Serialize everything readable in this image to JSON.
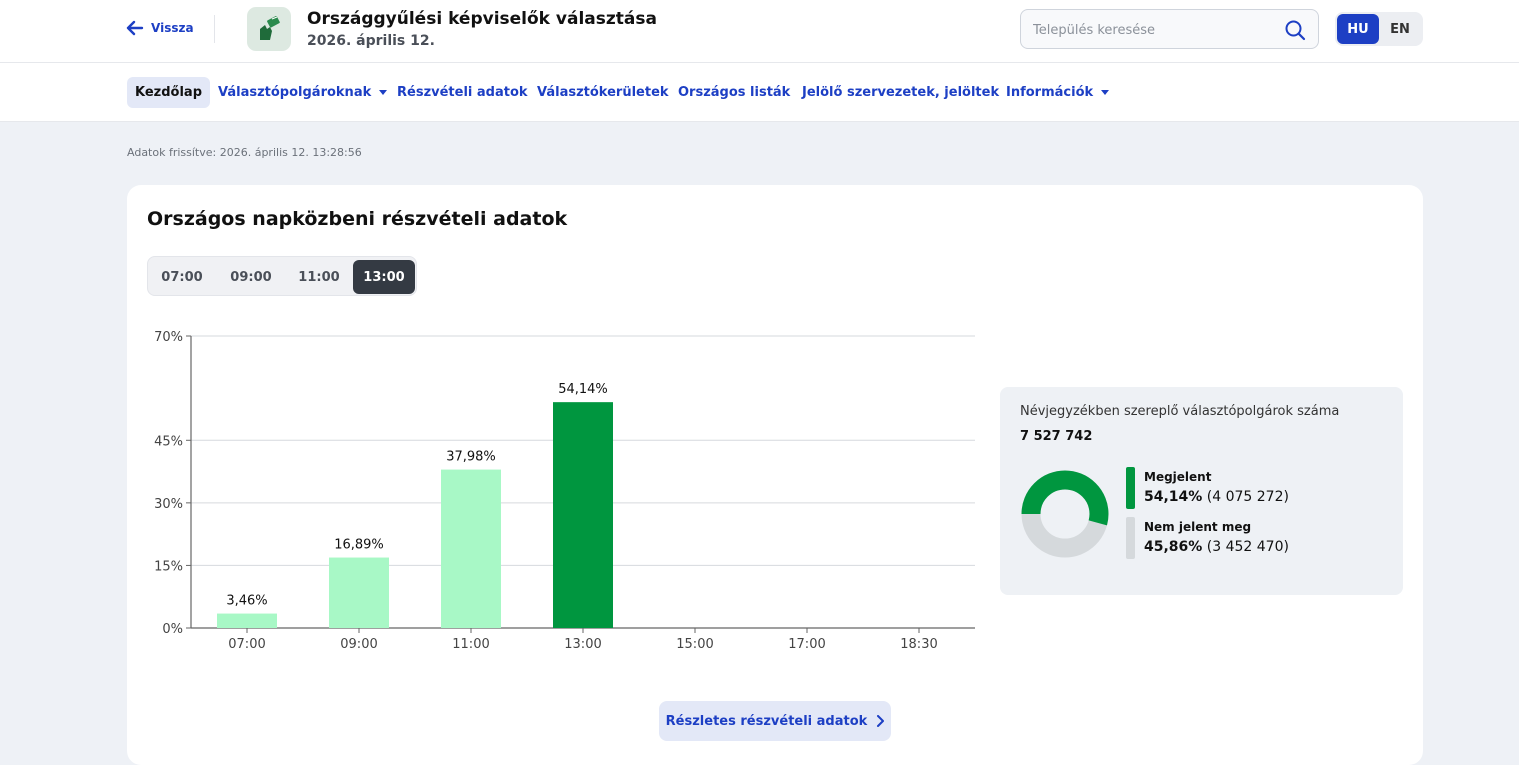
{
  "header": {
    "back_label": "Vissza",
    "title": "Országgyűlési képviselők választása",
    "subtitle": "2026. április 12.",
    "search_placeholder": "Település keresése",
    "languages": [
      "HU",
      "EN"
    ],
    "active_language": "HU"
  },
  "nav": {
    "items": [
      {
        "label": "Kezdőlap",
        "active": true,
        "dropdown": false
      },
      {
        "label": "Választópolgároknak",
        "active": false,
        "dropdown": true
      },
      {
        "label": "Részvételi adatok",
        "active": false,
        "dropdown": false
      },
      {
        "label": "Választókerületek",
        "active": false,
        "dropdown": false
      },
      {
        "label": "Országos listák",
        "active": false,
        "dropdown": false
      },
      {
        "label": "Jelölő szervezetek, jelöltek",
        "active": false,
        "dropdown": false
      },
      {
        "label": "Információk",
        "active": false,
        "dropdown": true
      }
    ]
  },
  "updated_text": "Adatok frissítve: 2026. április 12. 13:28:56",
  "card": {
    "title": "Országos napközbeni részvételi adatok",
    "time_segments": [
      "07:00",
      "09:00",
      "11:00",
      "13:00"
    ],
    "active_segment": "13:00",
    "details_button": "Részletes részvételi adatok"
  },
  "chart_data": {
    "type": "bar",
    "categories": [
      "07:00",
      "09:00",
      "11:00",
      "13:00",
      "15:00",
      "17:00",
      "18:30"
    ],
    "values": [
      3.46,
      16.89,
      37.98,
      54.14,
      null,
      null,
      null
    ],
    "data_labels": [
      "3,46%",
      "16,89%",
      "37,98%",
      "54,14%",
      "",
      "",
      ""
    ],
    "ylim": [
      0,
      70
    ],
    "yticks": [
      0,
      15,
      30,
      45,
      70
    ],
    "ytick_labels": [
      "0%",
      "15%",
      "30%",
      "45%",
      "70%"
    ],
    "grid": true,
    "highlight_category": "13:00",
    "colors": {
      "bar": "#a8f8c6",
      "highlight": "#00963f",
      "grid": "#d6d9de",
      "axis": "#666666"
    }
  },
  "summary": {
    "label": "Névjegyzékben szereplő választópolgárok száma",
    "total": "7 527 742",
    "appeared": {
      "name": "Megjelent",
      "percent": "54,14%",
      "count": "(4 075 272)",
      "fraction": 0.5414,
      "color": "#00963f"
    },
    "not_appeared": {
      "name": "Nem jelent meg",
      "percent": "45,86%",
      "count": "(3 452 470)",
      "fraction": 0.4586,
      "color": "#d5d9dc"
    }
  }
}
